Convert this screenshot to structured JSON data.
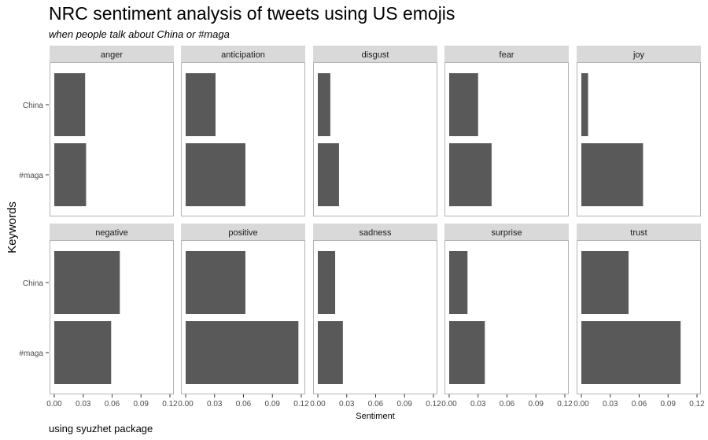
{
  "title": "NRC sentiment analysis of tweets using US emojis",
  "subtitle": "when people talk about China or #maga",
  "caption": "using syuzhet package",
  "chart_data": {
    "type": "bar",
    "orientation": "horizontal",
    "facet_rows": 2,
    "facet_cols": 5,
    "xlabel": "Sentiment",
    "ylabel": "Keywords",
    "xlim": [
      0,
      0.12
    ],
    "x_ticks": [
      "0.00",
      "0.03",
      "0.06",
      "0.09",
      "0.12"
    ],
    "categories": [
      "China",
      "#maga"
    ],
    "bar_color": "#595959",
    "strip_color": "#d9d9d9",
    "panel_border_color": "#b3b3b3",
    "grid": false,
    "panels": [
      {
        "label": "anger",
        "values": [
          0.032,
          0.033
        ]
      },
      {
        "label": "anticipation",
        "values": [
          0.031,
          0.062
        ]
      },
      {
        "label": "disgust",
        "values": [
          0.013,
          0.022
        ]
      },
      {
        "label": "fear",
        "values": [
          0.03,
          0.044
        ]
      },
      {
        "label": "joy",
        "values": [
          0.007,
          0.064
        ]
      },
      {
        "label": "negative",
        "values": [
          0.068,
          0.059
        ]
      },
      {
        "label": "positive",
        "values": [
          0.062,
          0.117
        ]
      },
      {
        "label": "sadness",
        "values": [
          0.018,
          0.026
        ]
      },
      {
        "label": "surprise",
        "values": [
          0.019,
          0.037
        ]
      },
      {
        "label": "trust",
        "values": [
          0.049,
          0.103
        ]
      }
    ]
  }
}
